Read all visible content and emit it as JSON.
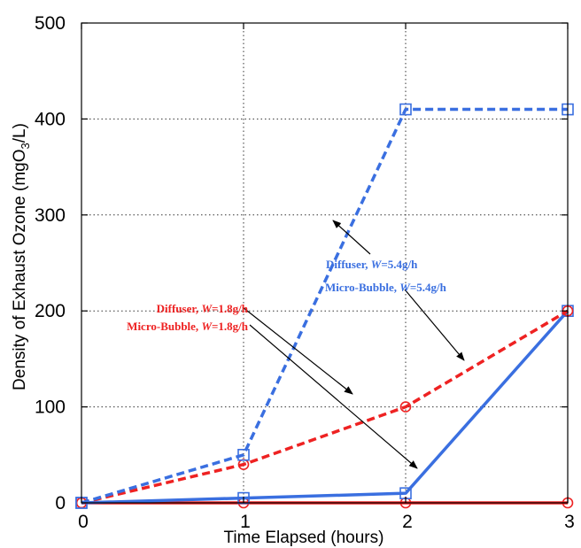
{
  "chart_data": {
    "type": "line",
    "xlabel": "Time Elapsed (hours)",
    "ylabel_prefix": "Density of Exhaust Ozone (mgO",
    "ylabel_sub": "3",
    "ylabel_suffix": "/L)",
    "xlim": [
      0,
      3
    ],
    "ylim": [
      0,
      500
    ],
    "x_ticks": [
      0,
      1,
      2,
      3
    ],
    "y_ticks": [
      0,
      100,
      200,
      300,
      400,
      500
    ],
    "grid": true,
    "x": [
      0,
      1,
      2,
      3
    ],
    "series": [
      {
        "name": "Diffuser, W=5.4g/h",
        "color": "#3a6fe0",
        "dash": true,
        "marker": "square",
        "values": [
          0,
          50,
          410,
          410
        ]
      },
      {
        "name": "Micro-Bubble, W=5.4g/h",
        "color": "#3a6fe0",
        "dash": false,
        "marker": "square",
        "values": [
          0,
          5,
          10,
          200
        ]
      },
      {
        "name": "Diffuser, W=1.8g/h",
        "color": "#ee2222",
        "dash": true,
        "marker": "circle",
        "values": [
          0,
          40,
          100,
          200
        ]
      },
      {
        "name": "Micro-Bubble, W=1.8g/h",
        "color": "#ee2222",
        "dash": false,
        "marker": "circle",
        "values": [
          0,
          0,
          0,
          0
        ]
      }
    ],
    "annotations": [
      {
        "prefix": "Diffuser, ",
        "var": "W",
        "suffix": "=5.4g/h",
        "color": "#3a6fe0"
      },
      {
        "prefix": "Micro-Bubble, ",
        "var": "W",
        "suffix": "=5.4g/h",
        "color": "#3a6fe0"
      },
      {
        "prefix": "Diffuser, ",
        "var": "W",
        "suffix": "=1.8g/h",
        "color": "#ee2222"
      },
      {
        "prefix": "Micro-Bubble, ",
        "var": "W",
        "suffix": "=1.8g/h",
        "color": "#ee2222"
      }
    ]
  }
}
